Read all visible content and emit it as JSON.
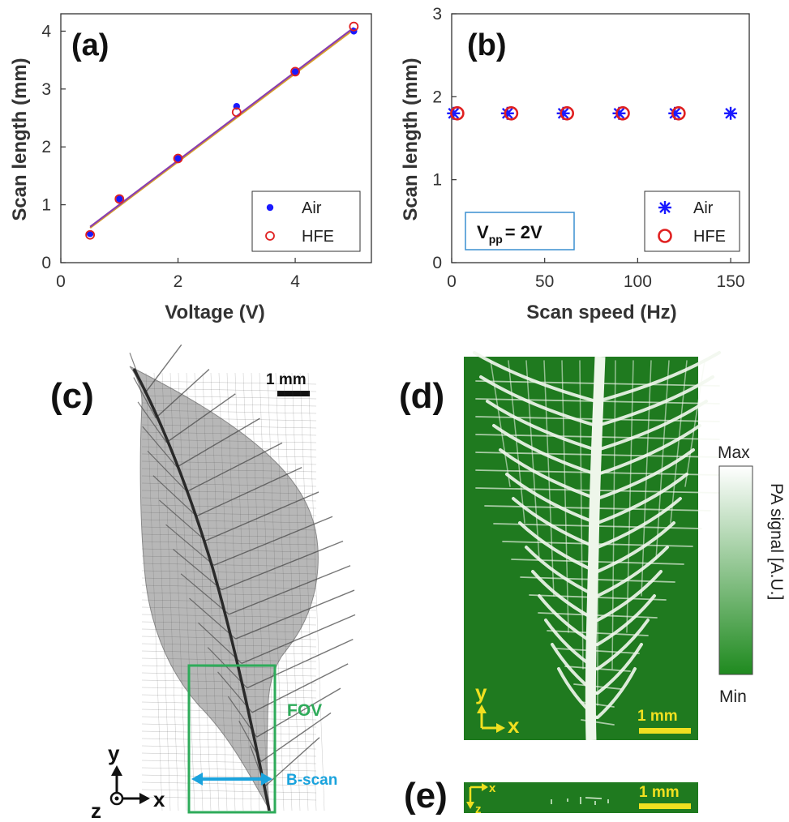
{
  "chart_data": [
    {
      "panel": "(a)",
      "type": "scatter",
      "xlabel": "Voltage (V)",
      "ylabel": "Scan length (mm)",
      "xlim": [
        0,
        5.3
      ],
      "ylim": [
        0,
        4.3
      ],
      "xticks": [
        "0",
        "2",
        "4"
      ],
      "yticks": [
        "0",
        "1",
        "2",
        "3",
        "4"
      ],
      "legend_placement": "bottom-right",
      "series": [
        {
          "name": "Air",
          "marker": "dot",
          "color": "#1a1aff",
          "x": [
            0.5,
            1,
            2,
            3,
            4,
            5
          ],
          "y": [
            0.5,
            1.1,
            1.8,
            2.7,
            3.3,
            4.0
          ]
        },
        {
          "name": "HFE",
          "marker": "circle",
          "color": "#e02020",
          "x": [
            0.5,
            1,
            2,
            3,
            4,
            5
          ],
          "y": [
            0.48,
            1.1,
            1.8,
            2.6,
            3.3,
            4.08
          ]
        }
      ],
      "fit_lines": [
        {
          "color": "#d9a02a",
          "x": [
            0.5,
            5
          ],
          "y": [
            0.6,
            4.03
          ]
        },
        {
          "color": "#8a3fb0",
          "x": [
            0.5,
            5
          ],
          "y": [
            0.62,
            4.06
          ]
        }
      ]
    },
    {
      "panel": "(b)",
      "type": "scatter",
      "xlabel": "Scan speed (Hz)",
      "ylabel": "Scan length (mm)",
      "xlim": [
        0,
        160
      ],
      "ylim": [
        0,
        3
      ],
      "xticks": [
        "0",
        "50",
        "100",
        "150"
      ],
      "yticks": [
        "0",
        "1",
        "2",
        "3"
      ],
      "legend_placement": "bottom-right",
      "annotation": {
        "main": "V",
        "sub": "pp",
        "rest": "=  2V"
      },
      "series": [
        {
          "name": "Air",
          "marker": "asterisk",
          "color": "#1a1aff",
          "x": [
            1,
            30,
            60,
            90,
            120,
            150
          ],
          "y": [
            1.8,
            1.8,
            1.8,
            1.8,
            1.8,
            1.8
          ]
        },
        {
          "name": "HFE",
          "marker": "circle",
          "color": "#e02020",
          "x": [
            3,
            32,
            62,
            92,
            122
          ],
          "y": [
            1.8,
            1.8,
            1.8,
            1.8,
            1.8
          ]
        }
      ]
    }
  ],
  "panel_c": {
    "label": "(c)",
    "scalebar": "1 mm",
    "fov": "FOV",
    "bscan": "B-scan",
    "axis_y": "y",
    "axis_x": "x",
    "axis_z": "z"
  },
  "panel_d": {
    "label": "(d)",
    "scalebar": "1 mm",
    "axis_y": "y",
    "axis_x": "x",
    "colorbar_max": "Max",
    "colorbar_min": "Min",
    "colorbar_label": "PA signal [A.U.]"
  },
  "panel_e": {
    "label": "(e)",
    "scalebar": "1 mm",
    "axis_x": "x",
    "axis_z": "z"
  },
  "colors": {
    "green_image": "#1f7a1f",
    "fov_box": "#2eab5a",
    "bscan_arrow": "#1aa3dd",
    "scale_yellow": "#f0e020"
  }
}
